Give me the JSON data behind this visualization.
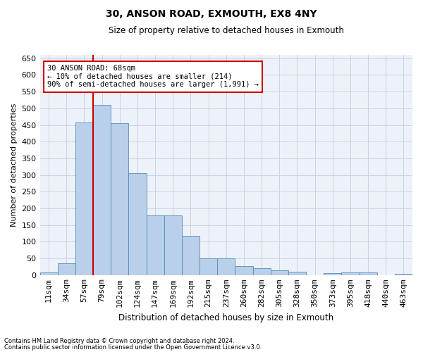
{
  "title1": "30, ANSON ROAD, EXMOUTH, EX8 4NY",
  "title2": "Size of property relative to detached houses in Exmouth",
  "xlabel": "Distribution of detached houses by size in Exmouth",
  "ylabel": "Number of detached properties",
  "categories": [
    "11sqm",
    "34sqm",
    "57sqm",
    "79sqm",
    "102sqm",
    "124sqm",
    "147sqm",
    "169sqm",
    "192sqm",
    "215sqm",
    "237sqm",
    "260sqm",
    "282sqm",
    "305sqm",
    "328sqm",
    "350sqm",
    "373sqm",
    "395sqm",
    "418sqm",
    "440sqm",
    "463sqm"
  ],
  "values": [
    7,
    35,
    458,
    511,
    456,
    305,
    180,
    180,
    117,
    50,
    50,
    27,
    20,
    14,
    10,
    0,
    5,
    7,
    7,
    0,
    4
  ],
  "bar_color": "#b8d0ea",
  "bar_edge_color": "#5588bb",
  "grid_color": "#c8d4e4",
  "background_color": "#edf2f9",
  "vline_color": "#cc0000",
  "vline_x_index": 2.5,
  "annotation_text": "30 ANSON ROAD: 68sqm\n← 10% of detached houses are smaller (214)\n90% of semi-detached houses are larger (1,991) →",
  "annotation_box_edgecolor": "#cc0000",
  "annotation_box_facecolor": "#ffffff",
  "footnote1": "Contains HM Land Registry data © Crown copyright and database right 2024.",
  "footnote2": "Contains public sector information licensed under the Open Government Licence v3.0.",
  "ylim": [
    0,
    660
  ],
  "yticks": [
    0,
    50,
    100,
    150,
    200,
    250,
    300,
    350,
    400,
    450,
    500,
    550,
    600,
    650
  ]
}
